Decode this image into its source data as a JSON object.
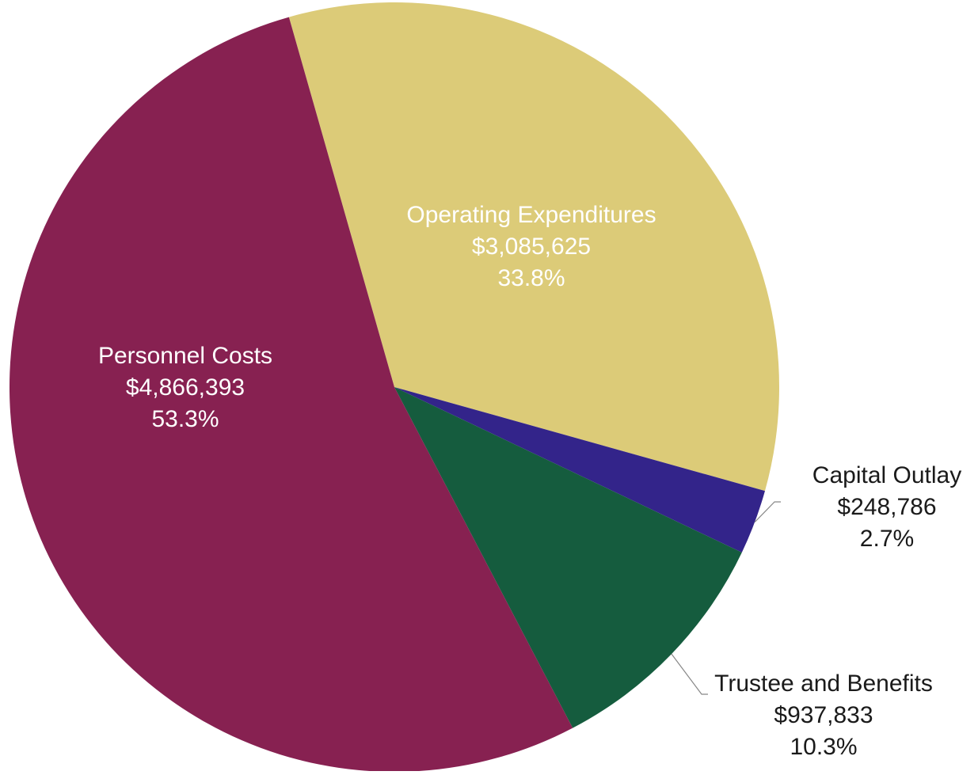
{
  "chart_data": {
    "type": "pie",
    "title": "",
    "slices": [
      {
        "label": "Operating Expenditures",
        "amount_text": "$3,085,625",
        "percent_text": "33.8%",
        "value": 3085625,
        "percent": 33.8,
        "color": "#DCCB78",
        "label_color": "#ffffff",
        "label_inside": true
      },
      {
        "label": "Capital Outlay",
        "amount_text": "$248,786",
        "percent_text": "2.7%",
        "value": 248786,
        "percent": 2.7,
        "color": "#33248A",
        "label_color": "#1a1a1a",
        "label_inside": false
      },
      {
        "label": "Trustee and Benefits",
        "amount_text": "$937,833",
        "percent_text": "10.3%",
        "value": 937833,
        "percent": 10.3,
        "color": "#155C3E",
        "label_color": "#1a1a1a",
        "label_inside": false
      },
      {
        "label": "Personnel Costs",
        "amount_text": "$4,866,393",
        "percent_text": "53.3%",
        "value": 4866393,
        "percent": 53.3,
        "color": "#872151",
        "label_color": "#ffffff",
        "label_inside": true
      }
    ],
    "leader_line_color": "#888888"
  }
}
